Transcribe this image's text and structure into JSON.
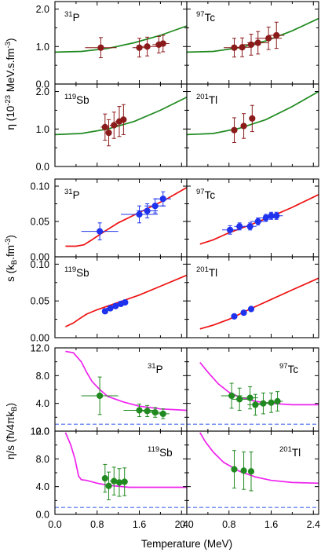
{
  "colors": {
    "eta_curve": "#1f8a1f",
    "eta_points": "#8b1a1a",
    "s_curve": "#ee1111",
    "s_points": "#1f33ee",
    "ratio_curve": "#ee22ee",
    "ratio_points": "#208a20",
    "kss_line": "#4a6cf0"
  },
  "chart_data": {
    "type": "scatter",
    "xlabel": "Temperature (MeV)",
    "xlim": [
      0,
      2.5
    ],
    "x_ticks": [
      "0.0",
      "0.8",
      "1.6",
      "2.4"
    ],
    "rows": [
      {
        "key": "eta",
        "ylabel": "η (10⁻²³ MeV.s.fm⁻³)",
        "ylim": [
          0,
          2.2
        ],
        "y_ticks": [
          "0.0",
          "1.0",
          "2.0"
        ],
        "panels": [
          {
            "nucleus": "31P",
            "mass": "31",
            "symbol": "P",
            "points": [
              {
                "x": 0.87,
                "y": 0.97,
                "xerr": 0.3,
                "yerr": 0.27
              },
              {
                "x": 1.6,
                "y": 0.97,
                "xerr": 0.13,
                "yerr": 0.25
              },
              {
                "x": 1.75,
                "y": 1.0,
                "xerr": 0.2,
                "yerr": 0.25
              },
              {
                "x": 1.97,
                "y": 1.05,
                "xerr": 0.12,
                "yerr": 0.22
              },
              {
                "x": 2.05,
                "y": 1.08,
                "xerr": 0.12,
                "yerr": 0.22
              }
            ],
            "curve": {
              "x": [
                0,
                0.5,
                1.0,
                1.5,
                2.0,
                2.5
              ],
              "y": [
                0.85,
                0.87,
                0.95,
                1.1,
                1.3,
                1.55
              ]
            }
          },
          {
            "nucleus": "97Tc",
            "mass": "97",
            "symbol": "Tc",
            "points": [
              {
                "x": 0.9,
                "y": 0.97,
                "xerr": 0.2,
                "yerr": 0.25
              },
              {
                "x": 1.05,
                "y": 0.98,
                "xerr": 0.15,
                "yerr": 0.25
              },
              {
                "x": 1.22,
                "y": 1.05,
                "xerr": 0.18,
                "yerr": 0.28
              },
              {
                "x": 1.35,
                "y": 1.1,
                "xerr": 0.2,
                "yerr": 0.3
              },
              {
                "x": 1.55,
                "y": 1.22,
                "xerr": 0.25,
                "yerr": 0.3
              },
              {
                "x": 1.7,
                "y": 1.3,
                "xerr": 0.15,
                "yerr": 0.35
              }
            ],
            "curve": {
              "x": [
                0,
                0.5,
                1.0,
                1.5,
                2.0,
                2.5
              ],
              "y": [
                0.85,
                0.87,
                0.97,
                1.15,
                1.42,
                1.75
              ]
            }
          },
          {
            "nucleus": "119Sb",
            "mass": "119",
            "symbol": "Sb",
            "points": [
              {
                "x": 0.95,
                "y": 1.05,
                "xerr": 0.08,
                "yerr": 0.35
              },
              {
                "x": 1.02,
                "y": 0.9,
                "xerr": 0.05,
                "yerr": 0.35
              },
              {
                "x": 1.12,
                "y": 1.1,
                "xerr": 0.08,
                "yerr": 0.35
              },
              {
                "x": 1.22,
                "y": 1.2,
                "xerr": 0.08,
                "yerr": 0.4
              },
              {
                "x": 1.3,
                "y": 1.25,
                "xerr": 0.06,
                "yerr": 0.4
              }
            ],
            "curve": {
              "x": [
                0,
                0.5,
                1.0,
                1.5,
                2.0,
                2.5
              ],
              "y": [
                0.85,
                0.88,
                1.0,
                1.2,
                1.5,
                1.85
              ]
            }
          },
          {
            "nucleus": "201Tl",
            "mass": "201",
            "symbol": "Tl",
            "points": [
              {
                "x": 0.9,
                "y": 0.97,
                "xerr": 0,
                "yerr": 0.33
              },
              {
                "x": 1.08,
                "y": 1.08,
                "xerr": 0,
                "yerr": 0.33
              },
              {
                "x": 1.24,
                "y": 1.28,
                "xerr": 0,
                "yerr": 0.35
              }
            ],
            "curve": {
              "x": [
                0,
                0.5,
                1.0,
                1.5,
                2.0,
                2.5
              ],
              "y": [
                0.85,
                0.88,
                1.02,
                1.25,
                1.6,
                2.0
              ]
            }
          }
        ]
      },
      {
        "key": "s",
        "ylabel": "s (k_B.fm⁻³)",
        "ylim": [
          0,
          0.11
        ],
        "y_ticks": [
          "0.00",
          "0.05",
          "0.10"
        ],
        "panels": [
          {
            "nucleus": "31P",
            "mass": "31",
            "symbol": "P",
            "points": [
              {
                "x": 0.85,
                "y": 0.036,
                "xerr": 0.35,
                "yerr": 0.012
              },
              {
                "x": 1.6,
                "y": 0.06,
                "xerr": 0.35,
                "yerr": 0.012
              },
              {
                "x": 1.75,
                "y": 0.065,
                "xerr": 0.2,
                "yerr": 0.01
              },
              {
                "x": 1.9,
                "y": 0.072,
                "xerr": 0.2,
                "yerr": 0.01
              },
              {
                "x": 2.05,
                "y": 0.082,
                "xerr": 0.15,
                "yerr": 0.01
              }
            ],
            "curve": {
              "x": [
                0.2,
                0.4,
                0.55,
                0.7,
                0.9,
                1.2,
                1.5,
                1.8,
                2.1,
                2.5
              ],
              "y": [
                0.015,
                0.015,
                0.017,
                0.024,
                0.034,
                0.048,
                0.059,
                0.07,
                0.081,
                0.098
              ]
            }
          },
          {
            "nucleus": "97Tc",
            "mass": "97",
            "symbol": "Tc",
            "points": [
              {
                "x": 0.82,
                "y": 0.038,
                "xerr": 0.15,
                "yerr": 0.006
              },
              {
                "x": 1.0,
                "y": 0.043,
                "xerr": 0.1,
                "yerr": 0.005
              },
              {
                "x": 1.2,
                "y": 0.043,
                "xerr": 0.12,
                "yerr": 0.005
              },
              {
                "x": 1.35,
                "y": 0.05,
                "xerr": 0.15,
                "yerr": 0.005
              },
              {
                "x": 1.5,
                "y": 0.055,
                "xerr": 0.15,
                "yerr": 0.005
              },
              {
                "x": 1.6,
                "y": 0.058,
                "xerr": 0.15,
                "yerr": 0.005
              },
              {
                "x": 1.7,
                "y": 0.058,
                "xerr": 0.12,
                "yerr": 0.005
              }
            ],
            "curve": {
              "x": [
                0.25,
                0.5,
                0.8,
                1.2,
                1.6,
                2.0,
                2.5
              ],
              "y": [
                0.018,
                0.024,
                0.034,
                0.045,
                0.057,
                0.07,
                0.088
              ]
            }
          },
          {
            "nucleus": "119Sb",
            "mass": "119",
            "symbol": "Sb",
            "points": [
              {
                "x": 0.95,
                "y": 0.036,
                "xerr": 0.05,
                "yerr": 0.003
              },
              {
                "x": 1.05,
                "y": 0.04,
                "xerr": 0.08,
                "yerr": 0.003
              },
              {
                "x": 1.15,
                "y": 0.043,
                "xerr": 0.08,
                "yerr": 0.003
              },
              {
                "x": 1.25,
                "y": 0.046,
                "xerr": 0.08,
                "yerr": 0.003
              },
              {
                "x": 1.33,
                "y": 0.048,
                "xerr": 0.06,
                "yerr": 0.003
              }
            ],
            "curve": {
              "x": [
                0.2,
                0.35,
                0.45,
                0.6,
                0.8,
                1.2,
                1.6,
                2.0,
                2.5
              ],
              "y": [
                0.015,
                0.02,
                0.025,
                0.032,
                0.038,
                0.048,
                0.058,
                0.07,
                0.085
              ]
            }
          },
          {
            "nucleus": "201Tl",
            "mass": "201",
            "symbol": "Tl",
            "points": [
              {
                "x": 0.9,
                "y": 0.029,
                "xerr": 0,
                "yerr": 0
              },
              {
                "x": 1.08,
                "y": 0.034,
                "xerr": 0,
                "yerr": 0
              },
              {
                "x": 1.22,
                "y": 0.039,
                "xerr": 0,
                "yerr": 0
              }
            ],
            "curve": {
              "x": [
                0.25,
                0.5,
                0.8,
                1.2,
                1.6,
                2.0,
                2.5
              ],
              "y": [
                0.012,
                0.017,
                0.025,
                0.039,
                0.052,
                0.065,
                0.081
              ]
            }
          }
        ]
      },
      {
        "key": "ratio",
        "ylabel": "η/s (ħ/4πk_B)",
        "ylim": [
          0,
          12
        ],
        "y_ticks": [
          "0.0",
          "4.0",
          "8.0",
          "12.0"
        ],
        "kss_value": 1.0,
        "panels": [
          {
            "nucleus": "31P",
            "mass": "31",
            "symbol": "P",
            "points": [
              {
                "x": 0.85,
                "y": 5.1,
                "xerr": 0.35,
                "yerr": 2.7
              },
              {
                "x": 1.6,
                "y": 3.0,
                "xerr": 0.3,
                "yerr": 0.9
              },
              {
                "x": 1.75,
                "y": 2.9,
                "xerr": 0.2,
                "yerr": 0.8
              },
              {
                "x": 1.9,
                "y": 2.7,
                "xerr": 0.2,
                "yerr": 0.7
              },
              {
                "x": 2.05,
                "y": 2.5,
                "xerr": 0.12,
                "yerr": 0.7
              }
            ],
            "curve": {
              "x": [
                0.2,
                0.35,
                0.5,
                0.6,
                0.7,
                0.85,
                1.0,
                1.3,
                1.6,
                2.0,
                2.5
              ],
              "y": [
                11.5,
                11.3,
                10.0,
                8.5,
                7.2,
                6.0,
                5.0,
                4.2,
                3.6,
                3.2,
                3.0
              ]
            }
          },
          {
            "nucleus": "97Tc",
            "mass": "97",
            "symbol": "Tc",
            "points": [
              {
                "x": 0.85,
                "y": 5.1,
                "xerr": 0.2,
                "yerr": 1.8
              },
              {
                "x": 1.0,
                "y": 4.6,
                "xerr": 0.15,
                "yerr": 1.6
              },
              {
                "x": 1.2,
                "y": 4.8,
                "xerr": 0.15,
                "yerr": 1.6
              },
              {
                "x": 1.3,
                "y": 3.8,
                "xerr": 0.15,
                "yerr": 1.5
              },
              {
                "x": 1.45,
                "y": 4.0,
                "xerr": 0.2,
                "yerr": 1.5
              },
              {
                "x": 1.6,
                "y": 4.1,
                "xerr": 0.15,
                "yerr": 1.4
              },
              {
                "x": 1.72,
                "y": 4.3,
                "xerr": 0.1,
                "yerr": 1.4
              }
            ],
            "curve": {
              "x": [
                0.25,
                0.4,
                0.6,
                0.8,
                1.0,
                1.3,
                1.6,
                2.0,
                2.5
              ],
              "y": [
                9.9,
                8.5,
                6.8,
                5.6,
                4.9,
                4.3,
                4.0,
                3.8,
                3.8
              ]
            }
          },
          {
            "nucleus": "119Sb",
            "mass": "119",
            "symbol": "Sb",
            "points": [
              {
                "x": 0.95,
                "y": 5.2,
                "xerr": 0.05,
                "yerr": 2.0
              },
              {
                "x": 1.02,
                "y": 4.1,
                "xerr": 0.05,
                "yerr": 2.0
              },
              {
                "x": 1.12,
                "y": 4.8,
                "xerr": 0.08,
                "yerr": 2.0
              },
              {
                "x": 1.22,
                "y": 4.6,
                "xerr": 0.08,
                "yerr": 2.0
              },
              {
                "x": 1.32,
                "y": 4.7,
                "xerr": 0.06,
                "yerr": 2.0
              }
            ],
            "curve": {
              "x": [
                0.2,
                0.3,
                0.38,
                0.45,
                0.5,
                0.6,
                0.8,
                1.0,
                1.4,
                2.0,
                2.5
              ],
              "y": [
                11.8,
                10.0,
                8.0,
                5.5,
                5.0,
                4.9,
                4.5,
                4.2,
                3.9,
                3.9,
                3.9
              ]
            }
          },
          {
            "nucleus": "201Tl",
            "mass": "201",
            "symbol": "Tl",
            "points": [
              {
                "x": 0.9,
                "y": 6.5,
                "xerr": 0,
                "yerr": 2.7
              },
              {
                "x": 1.08,
                "y": 6.3,
                "xerr": 0,
                "yerr": 2.7
              },
              {
                "x": 1.22,
                "y": 6.2,
                "xerr": 0,
                "yerr": 2.8
              }
            ],
            "curve": {
              "x": [
                0.25,
                0.35,
                0.5,
                0.7,
                1.0,
                1.3,
                1.6,
                2.0,
                2.5
              ],
              "y": [
                11.8,
                10.5,
                9.0,
                7.5,
                6.2,
                5.4,
                4.9,
                4.6,
                4.5
              ]
            }
          }
        ]
      }
    ]
  }
}
